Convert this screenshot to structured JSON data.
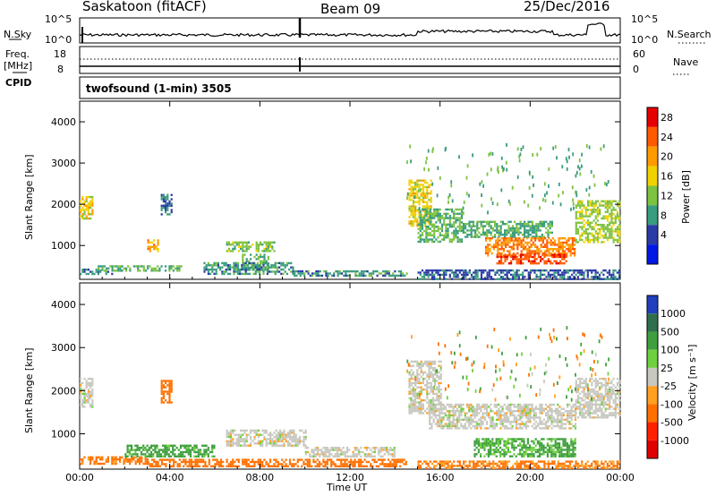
{
  "header": {
    "station": "Saskatoon (fitACF)",
    "beam": "Beam 09",
    "date": "25/Dec/2016"
  },
  "top_panel": {
    "left_label": "N.Sky",
    "right_label": "N.Search",
    "left_ticks": [
      "10^5",
      "10^0"
    ],
    "right_ticks": [
      "10^5",
      "10^0"
    ]
  },
  "freq_panel": {
    "left_label_1": "Freq.",
    "left_label_2": "[MHz]",
    "right_label": "Nave",
    "left_ticks": [
      "18",
      "8"
    ],
    "right_ticks": [
      "60",
      "0"
    ]
  },
  "cpid": {
    "label": "CPID",
    "program": "twofsound (1-min) 3505"
  },
  "power_colorbar": {
    "title": "Power [dB]",
    "ticks": [
      "28",
      "24",
      "20",
      "16",
      "12",
      "8",
      "4"
    ],
    "colors": [
      "#e60000",
      "#ff5a00",
      "#ff9b00",
      "#f0d200",
      "#7ec241",
      "#3a9c7e",
      "#2a3aa6",
      "#0018e6"
    ]
  },
  "velocity_colorbar": {
    "title": "Velocity [m s⁻¹]",
    "ticks": [
      "1000",
      "500",
      "100",
      "25",
      "-25",
      "-100",
      "-500",
      "-1000"
    ],
    "colors": [
      "#1f3fbf",
      "#2f6f4f",
      "#3f9f3f",
      "#6fd03f",
      "#c8c8c0",
      "#ffa020",
      "#ff7000",
      "#ff2000",
      "#e00000"
    ]
  },
  "axes": {
    "ylabel": "Slant Range [km]",
    "xlabel": "Time UT",
    "x_ticks": [
      "00:00",
      "04:00",
      "08:00",
      "12:00",
      "16:00",
      "20:00",
      "00:00"
    ],
    "y_ticks": [
      "1000",
      "2000",
      "3000",
      "4000"
    ]
  },
  "chart_data": [
    {
      "type": "heatmap",
      "name": "power",
      "xlim": [
        0,
        24
      ],
      "ylim": [
        180,
        4500
      ],
      "x_unit": "hours UT",
      "y_unit": "km",
      "colorbar_range": [
        0,
        30
      ],
      "patches": [
        {
          "t0": 0.0,
          "t1": 1.4,
          "r0": 300,
          "r1": 440,
          "v": 9
        },
        {
          "t0": 0.8,
          "t1": 4.5,
          "r0": 380,
          "r1": 520,
          "v": 12
        },
        {
          "t0": 3.0,
          "t1": 3.5,
          "r0": 850,
          "r1": 1150,
          "v": 22
        },
        {
          "t0": 3.6,
          "t1": 4.1,
          "r0": 1750,
          "r1": 2250,
          "v": 8
        },
        {
          "t0": 0.0,
          "t1": 0.6,
          "r0": 1650,
          "r1": 2200,
          "v": 18
        },
        {
          "t0": 6.5,
          "t1": 8.6,
          "r0": 850,
          "r1": 1100,
          "v": 14
        },
        {
          "t0": 7.2,
          "t1": 8.4,
          "r0": 400,
          "r1": 800,
          "v": 12
        },
        {
          "t0": 5.5,
          "t1": 9.5,
          "r0": 300,
          "r1": 600,
          "v": 10
        },
        {
          "t0": 9.5,
          "t1": 14.5,
          "r0": 250,
          "r1": 400,
          "v": 10
        },
        {
          "t0": 14.6,
          "t1": 15.6,
          "r0": 1500,
          "r1": 2600,
          "v": 18
        },
        {
          "t0": 15.0,
          "t1": 17.0,
          "r0": 1100,
          "r1": 1900,
          "v": 12
        },
        {
          "t0": 17.0,
          "t1": 21.0,
          "r0": 1200,
          "r1": 1600,
          "v": 11
        },
        {
          "t0": 18.0,
          "t1": 22.0,
          "r0": 750,
          "r1": 1200,
          "v": 24
        },
        {
          "t0": 18.5,
          "t1": 21.6,
          "r0": 550,
          "r1": 800,
          "v": 27
        },
        {
          "t0": 22.0,
          "t1": 24.0,
          "r0": 1100,
          "r1": 2100,
          "v": 15
        },
        {
          "t0": 15.0,
          "t1": 24.0,
          "r0": 200,
          "r1": 420,
          "v": 7
        }
      ]
    },
    {
      "type": "heatmap",
      "name": "velocity",
      "xlim": [
        0,
        24
      ],
      "ylim": [
        180,
        4500
      ],
      "x_unit": "hours UT",
      "y_unit": "km",
      "colorbar_range": [
        -1000,
        1000
      ],
      "patches": [
        {
          "t0": 0.0,
          "t1": 3.0,
          "r0": 300,
          "r1": 480,
          "v": -120
        },
        {
          "t0": 3.0,
          "t1": 14.5,
          "r0": 250,
          "r1": 420,
          "v": -130
        },
        {
          "t0": 0.0,
          "t1": 0.6,
          "r0": 1650,
          "r1": 2300,
          "v": 0
        },
        {
          "t0": 2.0,
          "t1": 6.0,
          "r0": 500,
          "r1": 750,
          "v": 120
        },
        {
          "t0": 3.6,
          "t1": 4.1,
          "r0": 1750,
          "r1": 2250,
          "v": -200
        },
        {
          "t0": 6.5,
          "t1": 10.0,
          "r0": 750,
          "r1": 1100,
          "v": 0
        },
        {
          "t0": 10.0,
          "t1": 14.0,
          "r0": 500,
          "r1": 700,
          "v": 0
        },
        {
          "t0": 14.6,
          "t1": 16.0,
          "r0": 1500,
          "r1": 2700,
          "v": 0
        },
        {
          "t0": 15.5,
          "t1": 22.0,
          "r0": 1150,
          "r1": 1700,
          "v": 0
        },
        {
          "t0": 22.0,
          "t1": 24.0,
          "r0": 1400,
          "r1": 2300,
          "v": 0
        },
        {
          "t0": 17.5,
          "t1": 22.0,
          "r0": 500,
          "r1": 900,
          "v": 110
        },
        {
          "t0": 15.0,
          "t1": 24.0,
          "r0": 200,
          "r1": 380,
          "v": -110
        }
      ]
    }
  ]
}
